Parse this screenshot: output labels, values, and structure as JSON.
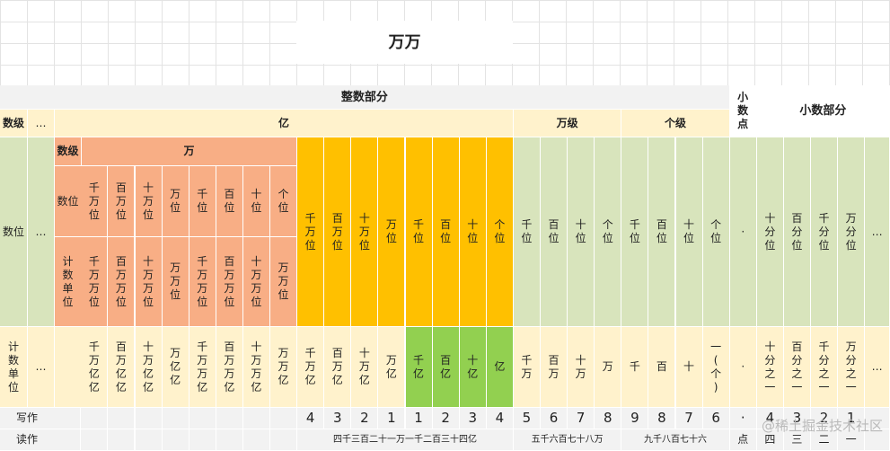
{
  "title": "万万",
  "integer_part": "整数部分",
  "decimal_point_header": "小数点",
  "decimal_part": "小数部分",
  "shuji": "数级",
  "ellipsis": "…",
  "yi": "亿",
  "wanji": "万级",
  "geji": "个级",
  "wan": "万",
  "shuwei": "数位",
  "jishu_danwei": "计数单位",
  "write": "写作",
  "read": "读作",
  "wan_places": [
    "千万位",
    "百万位",
    "十万位",
    "万位",
    "千位",
    "百位",
    "十位",
    "个位"
  ],
  "wan_units": [
    "千万万位",
    "百万万位",
    "十万万位",
    "万万位",
    "千万万位",
    "百万万位",
    "十万万位",
    "万万位"
  ],
  "yi_places": [
    "千万位",
    "百万位",
    "十万位",
    "万位",
    "千位",
    "百位",
    "十位",
    "个位"
  ],
  "wanji_places": [
    "千位",
    "百位",
    "十位",
    "个位"
  ],
  "geji_places": [
    "千位",
    "百位",
    "十位",
    "个位"
  ],
  "point_symbol": "·",
  "decimal_places": [
    "十分位",
    "百分位",
    "千分位",
    "万分位"
  ],
  "units_wan": [
    "千万亿亿",
    "百万亿亿",
    "十万亿亿",
    "万亿亿",
    "千万万亿",
    "百万万亿",
    "十万万亿",
    "万万亿"
  ],
  "units_yi": [
    "千万亿",
    "百万亿",
    "十万亿",
    "万亿",
    "千亿",
    "百亿",
    "十亿",
    "亿"
  ],
  "units_wanji": [
    "千万",
    "百万",
    "十万",
    "万"
  ],
  "units_geji": [
    "千",
    "百",
    "十",
    "一(个)"
  ],
  "units_decimal": [
    "十分之一",
    "百分之一",
    "千分之一",
    "万分之一"
  ],
  "digits_yi": [
    "4",
    "3",
    "2",
    "1",
    "1",
    "2",
    "3",
    "4"
  ],
  "digits_wanji": [
    "5",
    "6",
    "7",
    "8"
  ],
  "digits_geji": [
    "9",
    "8",
    "7",
    "6"
  ],
  "digit_point": "·",
  "digits_decimal": [
    "4",
    "3",
    "2",
    "1"
  ],
  "read_yi": "四千三百二十一万一千二百三十四亿",
  "read_wan": "五千六百七十八万",
  "read_ge": "九千八百七十六",
  "read_point": "点",
  "read_decimal": [
    "四",
    "三",
    "二",
    "一"
  ],
  "watermark": "@稀土掘金技术社区"
}
